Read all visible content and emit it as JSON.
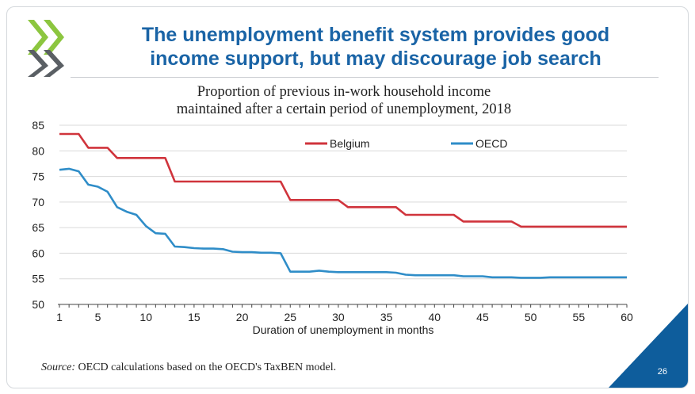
{
  "slide": {
    "headline_line1": "The unemployment benefit system provides good",
    "headline_line2": "income support, but may discourage job search",
    "subtitle_line1": "Proportion of previous in-work household income",
    "subtitle_line2": "maintained after a certain period of unemployment, 2018",
    "source_label": "Source:",
    "source_text": " OECD calculations based on the OECD's TaxBEN model.",
    "page_number": "26",
    "logo_icon": "oecd-chevron-logo-icon"
  },
  "colors": {
    "headline": "#1a64a6",
    "belgium": "#d0343c",
    "oecd": "#2f8dc8",
    "corner": "#0e5d9c",
    "logo_top": "#8cc63f",
    "logo_bottom": "#5a5f64",
    "grid": "#d9d9d9"
  },
  "chart_data": {
    "type": "line",
    "title": "Proportion of previous in-work household income maintained after a certain period of unemployment, 2018",
    "xlabel": "Duration of unemployment in months",
    "ylabel": "",
    "xlim": [
      1,
      60
    ],
    "ylim": [
      50,
      85
    ],
    "x_ticks": [
      1,
      5,
      10,
      15,
      20,
      25,
      30,
      35,
      40,
      45,
      50,
      55,
      60
    ],
    "y_ticks": [
      50,
      55,
      60,
      65,
      70,
      75,
      80,
      85
    ],
    "grid": "horizontal",
    "legend_placement": "top-center",
    "x": [
      1,
      2,
      3,
      4,
      5,
      6,
      7,
      8,
      9,
      10,
      11,
      12,
      13,
      14,
      15,
      16,
      17,
      18,
      19,
      20,
      21,
      22,
      23,
      24,
      25,
      26,
      27,
      28,
      29,
      30,
      31,
      32,
      33,
      34,
      35,
      36,
      37,
      38,
      39,
      40,
      41,
      42,
      43,
      44,
      45,
      46,
      47,
      48,
      49,
      50,
      51,
      52,
      53,
      54,
      55,
      56,
      57,
      58,
      59,
      60
    ],
    "series": [
      {
        "name": "Belgium",
        "values": [
          83.3,
          83.3,
          83.3,
          80.6,
          80.6,
          80.6,
          78.6,
          78.6,
          78.6,
          78.6,
          78.6,
          78.6,
          74.0,
          74.0,
          74.0,
          74.0,
          74.0,
          74.0,
          74.0,
          74.0,
          74.0,
          74.0,
          74.0,
          74.0,
          70.4,
          70.4,
          70.4,
          70.4,
          70.4,
          70.4,
          69.0,
          69.0,
          69.0,
          69.0,
          69.0,
          69.0,
          67.5,
          67.5,
          67.5,
          67.5,
          67.5,
          67.5,
          66.2,
          66.2,
          66.2,
          66.2,
          66.2,
          66.2,
          65.2,
          65.2,
          65.2,
          65.2,
          65.2,
          65.2,
          65.2,
          65.2,
          65.2,
          65.2,
          65.2,
          65.2
        ]
      },
      {
        "name": "OECD",
        "values": [
          76.3,
          76.5,
          76.0,
          73.4,
          73.0,
          72.0,
          69.0,
          68.1,
          67.5,
          65.3,
          63.9,
          63.8,
          61.3,
          61.2,
          61.0,
          60.9,
          60.9,
          60.8,
          60.3,
          60.2,
          60.2,
          60.1,
          60.1,
          60.0,
          56.4,
          56.4,
          56.4,
          56.6,
          56.4,
          56.3,
          56.3,
          56.3,
          56.3,
          56.3,
          56.3,
          56.2,
          55.8,
          55.7,
          55.7,
          55.7,
          55.7,
          55.7,
          55.5,
          55.5,
          55.5,
          55.3,
          55.3,
          55.3,
          55.2,
          55.2,
          55.2,
          55.3,
          55.3,
          55.3,
          55.3,
          55.3,
          55.3,
          55.3,
          55.3,
          55.3
        ]
      }
    ]
  }
}
